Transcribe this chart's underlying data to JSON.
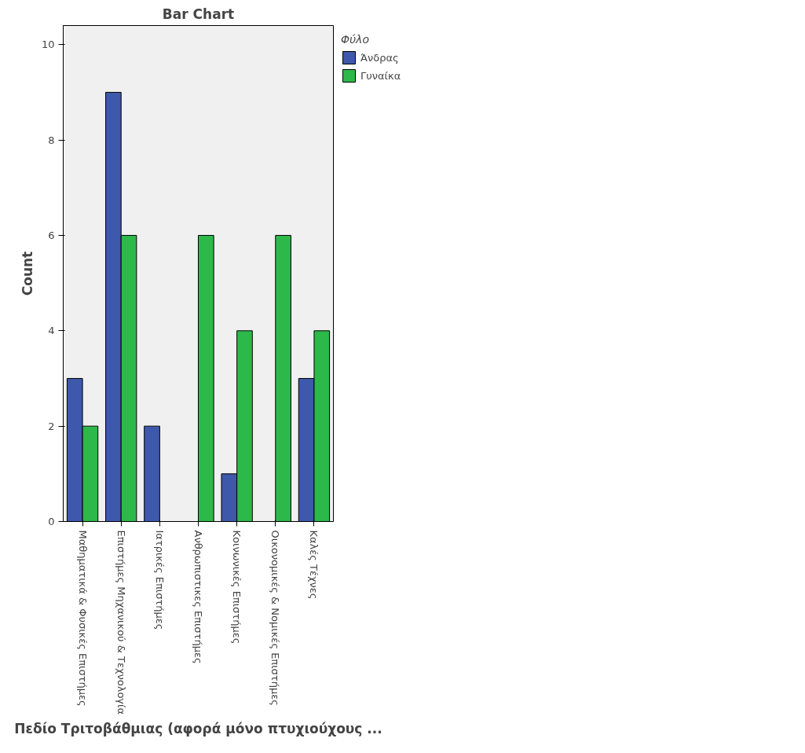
{
  "chart_data": {
    "type": "bar",
    "title": "Bar Chart",
    "xlabel": "Πεδίο Τριτοβάθμιας (αφορά μόνο πτυχιούχους ...",
    "ylabel": "Count",
    "legend_title": "Φύλο",
    "categories": [
      "Μαθηματικά & Φυσικές Επιστήμες",
      "Επιστήμες Μηχανικού & Τεχνολογία",
      "Ιατρικές Επιστήμες",
      "Ανθρωπιστικες Επιστήμες",
      "Κοινωνικές Επιστήμες",
      "Οικονομικές & Νομικές Επιστήμες",
      "Καλές Τέχνες"
    ],
    "series": [
      {
        "name": "Άνδρας",
        "color": "#3e58ac",
        "values": [
          3,
          9,
          2,
          null,
          1,
          null,
          3
        ]
      },
      {
        "name": "Γυναίκα",
        "color": "#2db84a",
        "values": [
          2,
          6,
          null,
          6,
          4,
          6,
          4
        ]
      }
    ],
    "ylim": [
      0,
      10.4
    ],
    "yticks": [
      0,
      2,
      4,
      6,
      8,
      10
    ],
    "grid": false,
    "legend": "top right"
  }
}
